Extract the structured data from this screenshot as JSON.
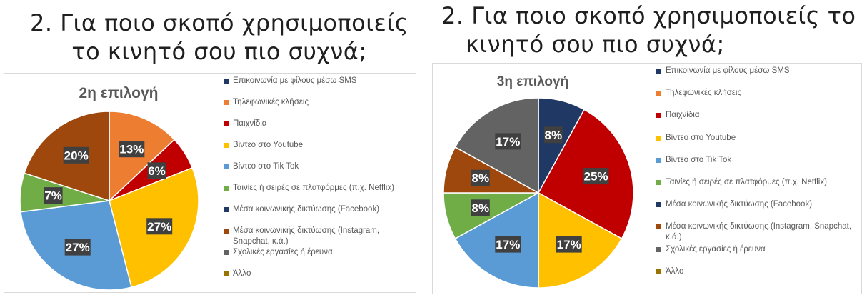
{
  "titles": {
    "left_line1": "2. Για ποιο σκοπό χρησιμοποιείς",
    "left_line2": "το κινητό σου πιο συχνά;",
    "right_line1": "2. Για ποιο σκοπό χρησιμοποιείς το",
    "right_line2": "κινητό σου πιο συχνά;"
  },
  "colors": {
    "Επικοινωνία με φίλους μέσω SMS": "#1f3864",
    "Τηλεφωνικές κλήσεις": "#ed7d31",
    "Παιχνίδια": "#c00000",
    "Βίντεο στο Youtube": "#ffc000",
    "Βίντεο στο Tik Tok": "#5b9bd5",
    "Ταινίες ή σειρές σε πλατφόρμες (π.χ. Netflix)": "#70ad47",
    "Μέσα κοινωνικής δικτύωσης (Facebook)": "#1f3864",
    "Μέσα κοινωνικής δικτύωσης (Instagram, Snapchat, κ.ά.)": "#9e480e",
    "Σχολικές εργασίες ή έρευνα": "#636363",
    "Άλλο": "#997300"
  },
  "chart_data": [
    {
      "type": "pie",
      "title": "2η επιλογή",
      "legend_position": "right",
      "categories": [
        "Επικοινωνία με φίλους μέσω SMS",
        "Τηλεφωνικές κλήσεις",
        "Παιχνίδια",
        "Βίντεο στο Youtube",
        "Βίντεο στο Tik Tok",
        "Ταινίες ή σειρές σε πλατφόρμες (π.χ. Netflix)",
        "Μέσα κοινωνικής δικτύωσης (Facebook)",
        "Μέσα κοινωνικής δικτύωσης (Instagram, Snapchat, κ.ά.)",
        "Σχολικές εργασίες ή έρευνα",
        "Άλλο"
      ],
      "values": [
        0,
        13,
        6,
        27,
        27,
        7,
        0,
        20,
        0,
        0
      ],
      "labels": [
        "",
        "13%",
        "6%",
        "27%",
        "27%",
        "7%",
        "",
        "20%",
        "",
        ""
      ]
    },
    {
      "type": "pie",
      "title": "3η επιλογή",
      "legend_position": "right",
      "categories": [
        "Επικοινωνία με φίλους μέσω SMS",
        "Τηλεφωνικές κλήσεις",
        "Παιχνίδια",
        "Βίντεο στο Youtube",
        "Βίντεο στο Tik Tok",
        "Ταινίες ή σειρές σε πλατφόρμες (π.χ. Netflix)",
        "Μέσα κοινωνικής δικτύωσης (Facebook)",
        "Μέσα κοινωνικής δικτύωσης (Instagram, Snapchat, κ.ά.)",
        "Σχολικές εργασίες ή έρευνα",
        "Άλλο"
      ],
      "values": [
        8,
        0,
        25,
        17,
        17,
        8,
        0,
        8,
        17,
        0
      ],
      "labels": [
        "8%",
        "",
        "25%",
        "17%",
        "17%",
        "8%",
        "",
        "8%",
        "17%",
        ""
      ]
    }
  ]
}
